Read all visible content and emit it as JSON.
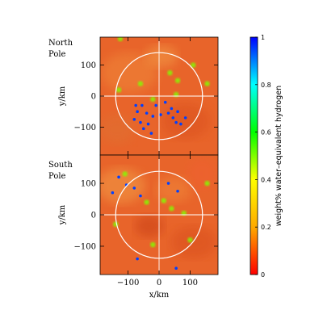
{
  "chart_data": [
    {
      "type": "heatmap",
      "panel_label": [
        "North",
        "Pole"
      ],
      "ylabel": "y/km",
      "x_ticks": [
        -100,
        0,
        100
      ],
      "y_ticks": [
        100,
        0,
        -100
      ],
      "xlim": [
        -190,
        190
      ],
      "ylim": [
        -190,
        190
      ],
      "circle_radius_km": 140,
      "background_color": "#e8642a",
      "hydrogen_spots_km": [
        {
          "x": -55,
          "y": -30,
          "v": 0.95
        },
        {
          "x": -70,
          "y": -50,
          "v": 0.95
        },
        {
          "x": -60,
          "y": -85,
          "v": 0.95
        },
        {
          "x": -80,
          "y": -75,
          "v": 0.95
        },
        {
          "x": -35,
          "y": -90,
          "v": 0.95
        },
        {
          "x": -20,
          "y": -65,
          "v": 0.95
        },
        {
          "x": 5,
          "y": -60,
          "v": 0.95
        },
        {
          "x": 30,
          "y": -55,
          "v": 0.95
        },
        {
          "x": 45,
          "y": -70,
          "v": 0.95
        },
        {
          "x": 55,
          "y": -85,
          "v": 0.95
        },
        {
          "x": 70,
          "y": -90,
          "v": 0.95
        },
        {
          "x": 40,
          "y": -40,
          "v": 0.95
        },
        {
          "x": 20,
          "y": -20,
          "v": 0.95
        },
        {
          "x": -10,
          "y": -30,
          "v": 0.95
        },
        {
          "x": -50,
          "y": -105,
          "v": 0.95
        },
        {
          "x": -25,
          "y": -120,
          "v": 0.95
        },
        {
          "x": 85,
          "y": -70,
          "v": 0.95
        },
        {
          "x": -75,
          "y": -30,
          "v": 0.95
        },
        {
          "x": -40,
          "y": -55,
          "v": 0.95
        },
        {
          "x": 60,
          "y": -50,
          "v": 0.95
        },
        {
          "x": -130,
          "y": 20,
          "v": 0.5
        },
        {
          "x": 60,
          "y": 50,
          "v": 0.5
        },
        {
          "x": 35,
          "y": 75,
          "v": 0.5
        },
        {
          "x": 110,
          "y": 100,
          "v": 0.5
        },
        {
          "x": -20,
          "y": -10,
          "v": 0.5
        },
        {
          "x": -125,
          "y": 185,
          "v": 0.5
        },
        {
          "x": 55,
          "y": 5,
          "v": 0.5
        },
        {
          "x": 155,
          "y": 40,
          "v": 0.5
        },
        {
          "x": -60,
          "y": 40,
          "v": 0.5
        }
      ]
    },
    {
      "type": "heatmap",
      "panel_label": [
        "South",
        "Pole"
      ],
      "ylabel": "y/km",
      "xlabel": "x/km",
      "x_ticks": [
        -100,
        0,
        100
      ],
      "y_ticks": [
        100,
        0,
        -100
      ],
      "xlim": [
        -190,
        190
      ],
      "ylim": [
        -190,
        190
      ],
      "circle_radius_km": 140,
      "background_color": "#e8642a",
      "hydrogen_spots_km": [
        {
          "x": -150,
          "y": 70,
          "v": 0.95
        },
        {
          "x": -105,
          "y": 95,
          "v": 0.95
        },
        {
          "x": -60,
          "y": 60,
          "v": 0.95
        },
        {
          "x": -80,
          "y": 85,
          "v": 0.95
        },
        {
          "x": 60,
          "y": 75,
          "v": 0.95
        },
        {
          "x": -130,
          "y": 120,
          "v": 0.95
        },
        {
          "x": 55,
          "y": -170,
          "v": 0.95
        },
        {
          "x": -70,
          "y": -140,
          "v": 0.95
        },
        {
          "x": 30,
          "y": 100,
          "v": 0.95
        },
        {
          "x": -40,
          "y": 40,
          "v": 0.5
        },
        {
          "x": 40,
          "y": 20,
          "v": 0.5
        },
        {
          "x": 80,
          "y": 5,
          "v": 0.5
        },
        {
          "x": -110,
          "y": 130,
          "v": 0.5
        },
        {
          "x": 15,
          "y": 45,
          "v": 0.5
        },
        {
          "x": -140,
          "y": -30,
          "v": 0.5
        },
        {
          "x": 155,
          "y": 100,
          "v": 0.5
        },
        {
          "x": 100,
          "y": -80,
          "v": 0.5
        },
        {
          "x": -20,
          "y": -95,
          "v": 0.5
        }
      ]
    }
  ],
  "colorbar": {
    "label": "weight% water–equivalent hydrogen",
    "ticks": [
      {
        "value": 1,
        "text": "1"
      },
      {
        "value": 0.8,
        "text": "0.8"
      },
      {
        "value": 0.6,
        "text": "0.6"
      },
      {
        "value": 0.4,
        "text": "0.4"
      },
      {
        "value": 0.2,
        "text": "0.2"
      },
      {
        "value": 0,
        "text": "0"
      }
    ],
    "range": [
      0,
      1
    ],
    "stops": [
      "#ff0000",
      "#ffaa00",
      "#ffff00",
      "#00ff00",
      "#00ffff",
      "#0000ff"
    ]
  }
}
